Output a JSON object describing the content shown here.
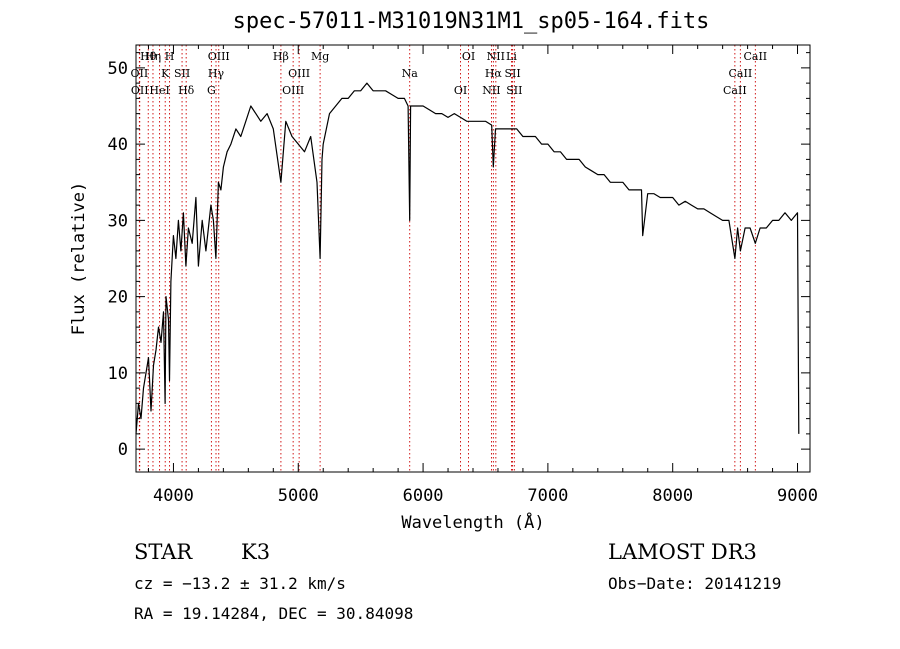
{
  "chart_data": {
    "type": "line",
    "title": "spec-57011-M31019N31M1_sp05-164.fits",
    "xlabel": "Wavelength (Å)",
    "ylabel": "Flux (relative)",
    "xlim": [
      3700,
      9100
    ],
    "ylim": [
      -3,
      53
    ],
    "xticks": [
      4000,
      5000,
      6000,
      7000,
      8000,
      9000
    ],
    "yticks": [
      0,
      10,
      20,
      30,
      40,
      50
    ],
    "grid": false,
    "series": [
      {
        "name": "flux",
        "x": [
          3700,
          3720,
          3740,
          3760,
          3780,
          3800,
          3820,
          3840,
          3860,
          3880,
          3900,
          3920,
          3933,
          3940,
          3960,
          3968,
          3980,
          4000,
          4020,
          4040,
          4060,
          4080,
          4100,
          4120,
          4150,
          4180,
          4200,
          4230,
          4260,
          4280,
          4300,
          4320,
          4340,
          4360,
          4380,
          4400,
          4430,
          4460,
          4500,
          4540,
          4580,
          4620,
          4660,
          4700,
          4750,
          4800,
          4861,
          4900,
          4950,
          5000,
          5050,
          5100,
          5150,
          5175,
          5190,
          5200,
          5250,
          5300,
          5350,
          5400,
          5450,
          5500,
          5550,
          5600,
          5650,
          5700,
          5750,
          5800,
          5850,
          5880,
          5893,
          5900,
          5950,
          6000,
          6050,
          6100,
          6150,
          6200,
          6250,
          6300,
          6350,
          6400,
          6450,
          6500,
          6550,
          6563,
          6580,
          6620,
          6680,
          6750,
          6800,
          6850,
          6900,
          6950,
          7000,
          7050,
          7100,
          7150,
          7200,
          7250,
          7300,
          7350,
          7400,
          7450,
          7500,
          7550,
          7600,
          7650,
          7700,
          7750,
          7760,
          7800,
          7850,
          7900,
          7950,
          8000,
          8050,
          8100,
          8150,
          8200,
          8250,
          8300,
          8350,
          8400,
          8450,
          8498,
          8520,
          8542,
          8580,
          8620,
          8662,
          8700,
          8750,
          8800,
          8850,
          8900,
          8950,
          9000,
          9010
        ],
        "y": [
          2,
          6,
          4,
          8,
          10,
          12,
          5,
          11,
          13,
          16,
          14,
          18,
          6,
          20,
          17,
          9,
          22,
          28,
          25,
          30,
          26,
          31,
          24,
          29,
          27,
          33,
          24,
          30,
          26,
          29,
          32,
          30,
          25,
          35,
          34,
          37,
          39,
          40,
          42,
          41,
          43,
          45,
          44,
          43,
          44,
          42,
          35,
          43,
          41,
          40,
          39,
          41,
          35,
          25,
          38,
          40,
          44,
          45,
          46,
          46,
          47,
          47,
          48,
          47,
          47,
          47,
          46.5,
          46,
          46,
          45,
          30,
          45,
          45,
          45,
          44.5,
          44,
          44,
          43.5,
          44,
          43.5,
          43,
          43,
          43,
          43,
          42.5,
          37,
          42,
          42,
          42,
          42,
          41,
          41,
          41,
          40,
          40,
          39,
          39,
          38,
          38,
          38,
          37,
          36.5,
          36,
          36,
          35,
          35,
          35,
          34,
          34,
          34,
          28,
          33.5,
          33.5,
          33,
          33,
          33,
          32,
          32.5,
          32,
          31.5,
          31.5,
          31,
          30.5,
          30,
          30,
          25,
          29,
          26,
          29,
          29,
          27,
          29,
          29,
          30,
          30,
          31,
          30,
          31,
          2
        ]
      }
    ],
    "lines": [
      {
        "label": "Hθ",
        "x": 3798
      },
      {
        "label": "OII",
        "x": 3727
      },
      {
        "label": "OII",
        "x": 3730
      },
      {
        "label": "Hη",
        "x": 3836
      },
      {
        "label": "K",
        "x": 3934
      },
      {
        "label": "HeI",
        "x": 3889
      },
      {
        "label": "H",
        "x": 3969
      },
      {
        "label": "SII",
        "x": 4069
      },
      {
        "label": "Hδ",
        "x": 4102
      },
      {
        "label": "OIII",
        "x": 4363
      },
      {
        "label": "Hγ",
        "x": 4341
      },
      {
        "label": "G",
        "x": 4304
      },
      {
        "label": "Hβ",
        "x": 4861
      },
      {
        "label": "OIII",
        "x": 5007
      },
      {
        "label": "OIII",
        "x": 4959
      },
      {
        "label": "Mg",
        "x": 5175
      },
      {
        "label": "Na",
        "x": 5893
      },
      {
        "label": "OI",
        "x": 6300
      },
      {
        "label": "OI",
        "x": 6364
      },
      {
        "label": "Hα",
        "x": 6563
      },
      {
        "label": "NII",
        "x": 6548
      },
      {
        "label": "NII",
        "x": 6583
      },
      {
        "label": "SII",
        "x": 6717
      },
      {
        "label": "SII",
        "x": 6731
      },
      {
        "label": "Li",
        "x": 6708
      },
      {
        "label": "CaII",
        "x": 8542
      },
      {
        "label": "CaII",
        "x": 8498
      },
      {
        "label": "CaII",
        "x": 8662
      }
    ]
  },
  "info": {
    "class": "STAR",
    "subclass": "K3",
    "survey": "LAMOST DR3",
    "cz": "cz = −13.2 ± 31.2 km/s",
    "obs_date": "Obs−Date: 20141219",
    "coords": "RA =  19.14284, DEC =  30.84098"
  },
  "colors": {
    "axis": "#000000",
    "spectrum": "#000000",
    "lines": "#cc0000"
  }
}
